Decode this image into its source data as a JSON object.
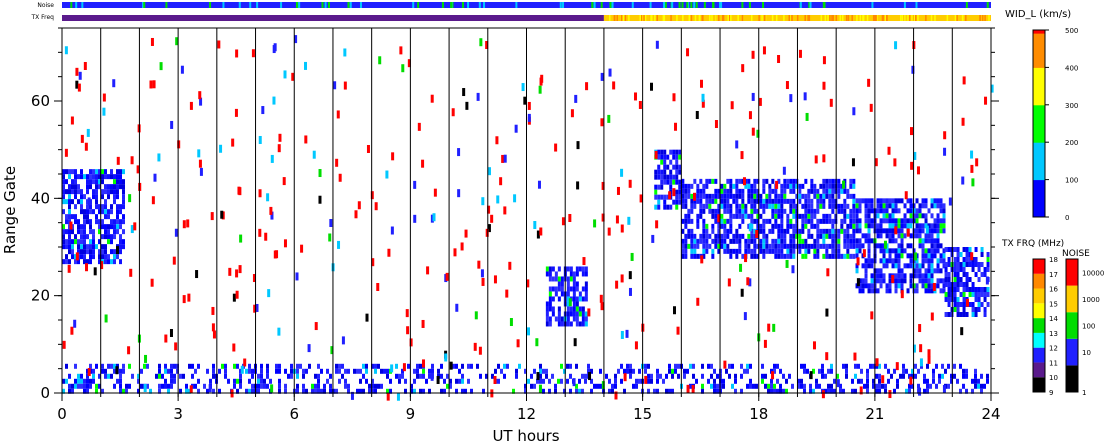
{
  "chart_data": {
    "type": "heatmap",
    "xlabel": "UT hours",
    "ylabel": "Range Gate",
    "xlim": [
      0,
      24
    ],
    "ylim": [
      0,
      75
    ],
    "xticks": [
      "0",
      "3",
      "6",
      "9",
      "12",
      "15",
      "18",
      "21",
      "24"
    ],
    "yticks": [
      "0",
      "20",
      "40",
      "60"
    ],
    "top_bars": {
      "noise_label": "Noise",
      "txfreq_label": "TX Freq"
    },
    "width_colorbar": {
      "title": "WID_L (km/s)",
      "range": [
        0,
        500
      ],
      "ticks": [
        "0",
        "100",
        "200",
        "300",
        "400",
        "500"
      ],
      "colors": [
        "#0000ff",
        "#00c8ff",
        "#00ff00",
        "#ffff00",
        "#ff8c00",
        "#ff0000"
      ]
    },
    "freq_colorbar": {
      "title": "TX FRQ (MHz)",
      "ticks": [
        "9",
        "10",
        "11",
        "12",
        "13",
        "14",
        "15",
        "16",
        "17",
        "18"
      ],
      "colors": [
        "#000000",
        "#5a1a8c",
        "#2020ff",
        "#00ffff",
        "#00dd00",
        "#ffff00",
        "#ffcc00",
        "#ff8800",
        "#ff0000"
      ]
    },
    "noise_colorbar": {
      "title": "NOISE",
      "ticks": [
        "1",
        "10",
        "100",
        "1000",
        "10000"
      ],
      "colors": [
        "#000000",
        "#2020ff",
        "#00dd00",
        "#ffcc00",
        "#ff0000"
      ]
    },
    "scatter_regions": [
      {
        "description": "echoes",
        "t_start": 0.0,
        "t_end": 1.6,
        "gate_low": 26,
        "gate_high": 46
      },
      {
        "description": "echoes",
        "t_start": 12.5,
        "t_end": 13.6,
        "gate_low": 14,
        "gate_high": 26
      },
      {
        "description": "echoes",
        "t_start": 15.3,
        "t_end": 16.0,
        "gate_low": 38,
        "gate_high": 50
      },
      {
        "description": "echoes",
        "t_start": 16.0,
        "t_end": 20.5,
        "gate_low": 28,
        "gate_high": 44
      },
      {
        "description": "echoes",
        "t_start": 20.5,
        "t_end": 22.8,
        "gate_low": 20,
        "gate_high": 40
      },
      {
        "description": "echoes",
        "t_start": 22.8,
        "t_end": 24.0,
        "gate_low": 16,
        "gate_high": 30
      },
      {
        "description": "near-range",
        "t_start": 0.0,
        "t_end": 24.0,
        "gate_low": 0,
        "gate_high": 6
      }
    ]
  }
}
